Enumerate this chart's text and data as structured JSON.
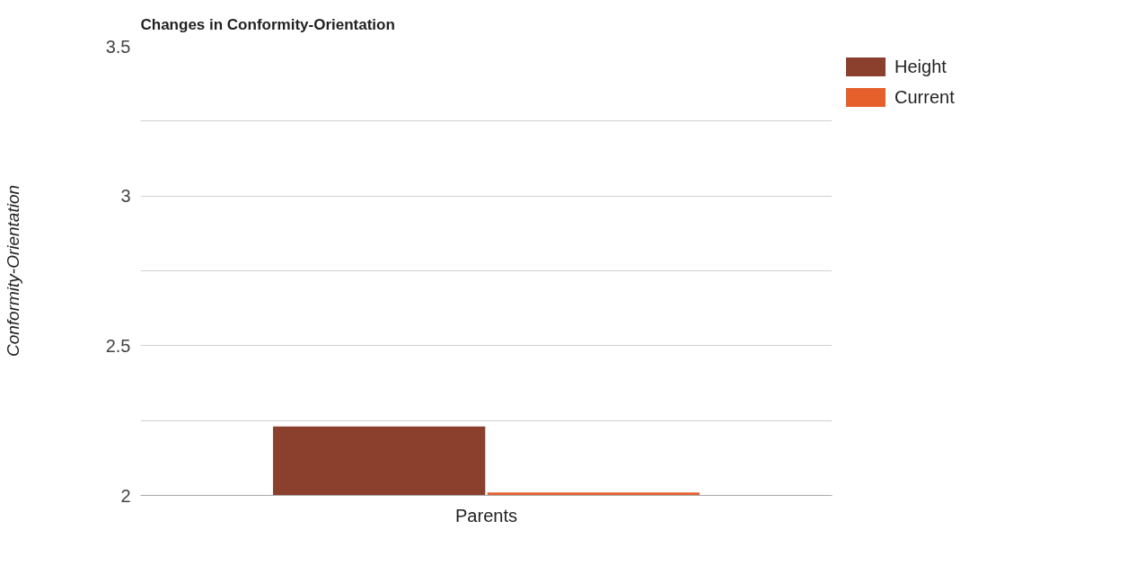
{
  "chart_data": {
    "type": "bar",
    "title": "Changes in Conformity-Orientation",
    "ylabel": "Conformity-Orientation",
    "categories": [
      "Parents"
    ],
    "series": [
      {
        "name": "Height",
        "color": "#8b3f2d",
        "values": [
          2.23
        ]
      },
      {
        "name": "Current",
        "color": "#e5602b",
        "values": [
          2.01
        ]
      }
    ],
    "ylim": [
      2,
      3.5
    ],
    "yticks": [
      2,
      {
        "value": 2.25,
        "label": null
      },
      2.5,
      {
        "value": 2.75,
        "label": null
      },
      3,
      {
        "value": 3.25,
        "label": null
      },
      3.5
    ],
    "grid": "y",
    "legend": "top right"
  }
}
